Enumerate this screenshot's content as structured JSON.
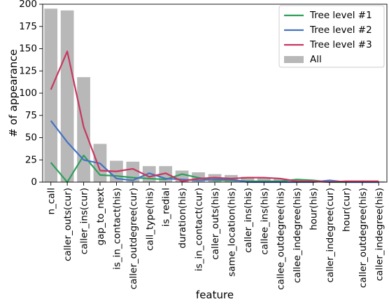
{
  "chart_data": {
    "type": "bar",
    "xlabel": "feature",
    "ylabel": "# of appearance",
    "ylim": [
      0,
      200
    ],
    "yticks": [
      0,
      25,
      50,
      75,
      100,
      125,
      150,
      175,
      200
    ],
    "grid": false,
    "legend_position": "top-right",
    "categories": [
      "n_call",
      "caller_outs(cur)",
      "caller_ins(cur)",
      "gap_to_next",
      "is_in_contact(his)",
      "caller_outdegree(cur)",
      "call_type(his)",
      "is_redial",
      "duration(his)",
      "is_in_contact(cur)",
      "caller_outs(his)",
      "same_location(his)",
      "caller_ins(his)",
      "callee_ins(his)",
      "callee_outdegree(his)",
      "callee_indegree(his)",
      "hour(his)",
      "caller_indegree(cur)",
      "hour(cur)",
      "caller_outdegree(his)",
      "caller_indegree(his)"
    ],
    "bars": {
      "name": "All",
      "color": "#b8b8b8",
      "values": [
        195,
        193,
        118,
        43,
        24,
        23,
        18,
        18,
        13,
        11,
        9,
        8,
        6,
        5,
        4,
        3,
        2,
        2,
        1,
        1,
        1
      ]
    },
    "series": [
      {
        "name": "Tree level #1",
        "color": "#2ca05a",
        "values": [
          22,
          0,
          30,
          8,
          7,
          5,
          4,
          3,
          9,
          5,
          2,
          2,
          1,
          1,
          1,
          3,
          2,
          0,
          0,
          0,
          0
        ]
      },
      {
        "name": "Tree level #2",
        "color": "#4472c4",
        "values": [
          69,
          45,
          25,
          21,
          4,
          2,
          10,
          4,
          3,
          2,
          3,
          3,
          0,
          0,
          0,
          0,
          0,
          2,
          0,
          0,
          0
        ]
      },
      {
        "name": "Tree level #3",
        "color": "#c8375f",
        "values": [
          104,
          147,
          62,
          13,
          12,
          15,
          6,
          10,
          1,
          4,
          5,
          4,
          5,
          5,
          4,
          1,
          1,
          0,
          1,
          1,
          1
        ]
      }
    ]
  }
}
